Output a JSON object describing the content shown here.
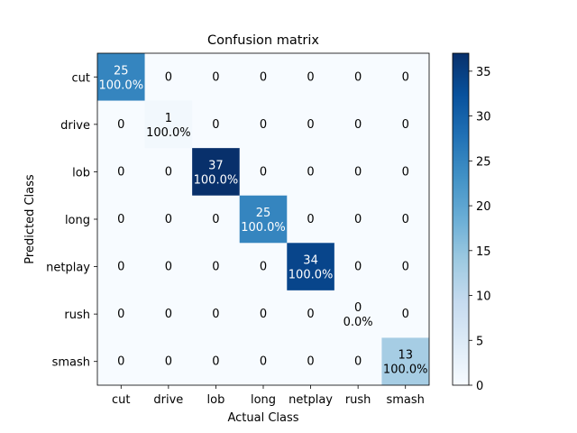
{
  "chart_data": {
    "type": "heatmap",
    "title": "Confusion matrix",
    "xlabel": "Actual Class",
    "ylabel": "Predicted Class",
    "x_categories": [
      "cut",
      "drive",
      "lob",
      "long",
      "netplay",
      "rush",
      "smash"
    ],
    "y_categories": [
      "cut",
      "drive",
      "lob",
      "long",
      "netplay",
      "rush",
      "smash"
    ],
    "values": [
      [
        25,
        0,
        0,
        0,
        0,
        0,
        0
      ],
      [
        0,
        1,
        0,
        0,
        0,
        0,
        0
      ],
      [
        0,
        0,
        37,
        0,
        0,
        0,
        0
      ],
      [
        0,
        0,
        0,
        25,
        0,
        0,
        0
      ],
      [
        0,
        0,
        0,
        0,
        34,
        0,
        0
      ],
      [
        0,
        0,
        0,
        0,
        0,
        0,
        0
      ],
      [
        0,
        0,
        0,
        0,
        0,
        0,
        13
      ]
    ],
    "diagonal_percent_labels": [
      "100.0%",
      "100.0%",
      "100.0%",
      "100.0%",
      "100.0%",
      "0.0%",
      "100.0%"
    ],
    "colormap": "Blues",
    "colorbar": {
      "range": [
        0,
        37
      ],
      "ticks": [
        0,
        5,
        10,
        15,
        20,
        25,
        30,
        35
      ]
    },
    "grid": false
  }
}
